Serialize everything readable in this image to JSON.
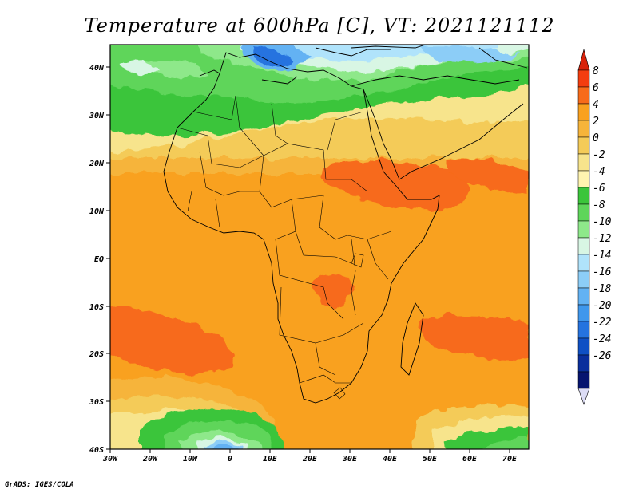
{
  "title": "Temperature at 600hPa [C], VT: 2021121112",
  "footer": "GrADS: IGES/COLA",
  "map": {
    "region": "Africa",
    "variable": "Temperature at 600hPa",
    "units": "C",
    "lon_range": [
      -30,
      75
    ],
    "lat_range": [
      -40,
      45
    ],
    "lon_ticks": [
      "30W",
      "20W",
      "10W",
      "0",
      "10E",
      "20E",
      "30E",
      "40E",
      "50E",
      "60E",
      "70E"
    ],
    "lat_ticks": [
      "40N",
      "30N",
      "20N",
      "10N",
      "EQ",
      "10S",
      "20S",
      "30S",
      "40S"
    ]
  },
  "colorbar": {
    "labels": [
      "8",
      "6",
      "4",
      "2",
      "0",
      "-2",
      "-4",
      "-6",
      "-8",
      "-10",
      "-12",
      "-14",
      "-16",
      "-18",
      "-20",
      "-22",
      "-24",
      "-26"
    ],
    "colors": [
      "#f33d0f",
      "#f76b1a",
      "#f9a11f",
      "#f6b43a",
      "#f4cb58",
      "#f7e48c",
      "#fff4b0",
      "#3bc53b",
      "#5ed55a",
      "#8ee88a",
      "#d8f6e4",
      "#b0e3fb",
      "#8ccdf7",
      "#63b2f3",
      "#3f97ec",
      "#2573df",
      "#0f50c4",
      "#0a2f9c",
      "#06146f"
    ],
    "top_arrow_color": "#d9230b",
    "bottom_arrow_color": "#dcdcf5"
  }
}
